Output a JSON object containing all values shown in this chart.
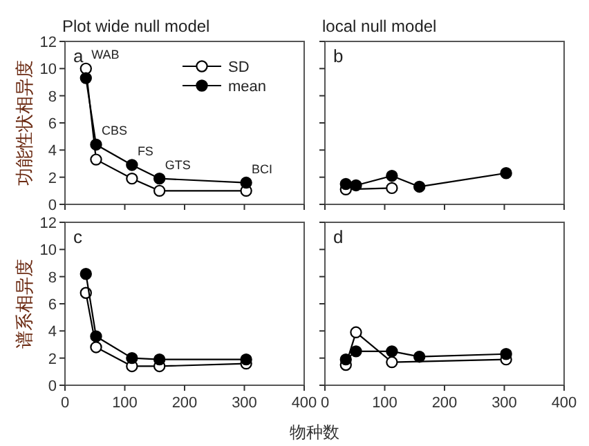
{
  "chart_data": [
    {
      "type": "line",
      "title": "Plot wide null model",
      "ylabel": "功能性状相异度",
      "x": [
        35,
        52,
        112,
        158,
        303
      ],
      "series": [
        {
          "name": "SD",
          "color": "#ffffff",
          "values": [
            10,
            3.3,
            1.9,
            1.0,
            1.0
          ]
        },
        {
          "name": "mean",
          "color": "#000000",
          "values": [
            9.3,
            4.4,
            2.9,
            1.9,
            1.6
          ]
        }
      ],
      "marker": "circle",
      "xlim": [
        0,
        400
      ],
      "ylim": [
        0,
        12
      ],
      "xticks": [
        0,
        100,
        200,
        300,
        400
      ],
      "yticks": [
        0,
        2,
        4,
        6,
        8,
        10,
        12
      ],
      "tick_labels": "y",
      "legend": "top right",
      "annotations": [
        "a",
        {
          "text": "WAB",
          "x": 35,
          "y": 10
        },
        {
          "text": "CBS",
          "x": 52,
          "y": 4.4
        },
        {
          "text": "FS",
          "x": 112,
          "y": 2.9
        },
        {
          "text": "GTS",
          "x": 158,
          "y": 1.9
        },
        {
          "text": "BCI",
          "x": 303,
          "y": 1.6
        }
      ]
    },
    {
      "type": "line",
      "title": "local null model",
      "x": [
        35,
        52,
        112,
        158,
        303
      ],
      "series": [
        {
          "color": "#ffffff",
          "values": [
            1.1,
            null,
            1.2,
            null,
            null
          ]
        },
        {
          "color": "#000000",
          "values": [
            1.5,
            1.4,
            2.1,
            1.3,
            2.3
          ]
        }
      ],
      "marker": "circle",
      "xlim": [
        0,
        400
      ],
      "ylim": [
        0,
        12
      ],
      "xticks": [
        0,
        100,
        200,
        300,
        400
      ],
      "yticks": [
        0,
        2,
        4,
        6,
        8,
        10,
        12
      ],
      "tick_labels": false,
      "annotations": [
        "b"
      ]
    },
    {
      "type": "line",
      "ylabel": "谱系相异度",
      "xlabel": "物种数",
      "x": [
        35,
        52,
        112,
        158,
        303
      ],
      "series": [
        {
          "color": "#ffffff",
          "values": [
            6.8,
            2.8,
            1.4,
            1.4,
            1.6
          ]
        },
        {
          "color": "#000000",
          "values": [
            8.2,
            3.6,
            2.0,
            1.9,
            1.9
          ]
        }
      ],
      "marker": "circle",
      "xlim": [
        0,
        400
      ],
      "ylim": [
        0,
        12
      ],
      "xticks": [
        0,
        100,
        200,
        300,
        400
      ],
      "yticks": [
        0,
        2,
        4,
        6,
        8,
        10,
        12
      ],
      "annotations": [
        "c"
      ]
    },
    {
      "type": "line",
      "x": [
        35,
        52,
        112,
        158,
        303
      ],
      "series": [
        {
          "color": "#ffffff",
          "values": [
            1.5,
            3.9,
            1.7,
            null,
            1.9
          ]
        },
        {
          "color": "#000000",
          "values": [
            1.9,
            2.5,
            2.5,
            2.1,
            2.3
          ]
        }
      ],
      "marker": "circle",
      "xlim": [
        0,
        400
      ],
      "ylim": [
        0,
        12
      ],
      "xticks": [
        0,
        100,
        200,
        300,
        400
      ],
      "yticks": [
        0,
        2,
        4,
        6,
        8,
        10,
        12
      ],
      "tick_labels": "x",
      "annotations": [
        "d"
      ]
    }
  ]
}
